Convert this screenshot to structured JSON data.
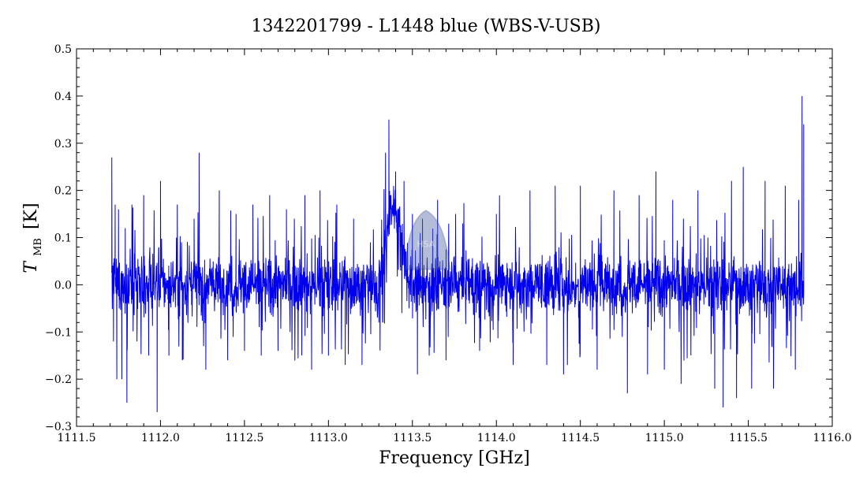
{
  "chart_data": {
    "type": "line",
    "title": "1342201799 - L1448 blue (WBS-V-USB)",
    "xlabel": "Frequency [GHz]",
    "ylabel_main": "T",
    "ylabel_sub": "MB",
    "ylabel_unit": "[K]",
    "xlim": [
      1111.5,
      1116.0
    ],
    "ylim": [
      -0.3,
      0.5
    ],
    "x_ticks": [
      {
        "value": 1111.5,
        "label": "1111.5"
      },
      {
        "value": 1112.0,
        "label": "1112.0"
      },
      {
        "value": 1112.5,
        "label": "1112.5"
      },
      {
        "value": 1113.0,
        "label": "1113.0"
      },
      {
        "value": 1113.5,
        "label": "1113.5"
      },
      {
        "value": 1114.0,
        "label": "1114.0"
      },
      {
        "value": 1114.5,
        "label": "1114.5"
      },
      {
        "value": 1115.0,
        "label": "1115.0"
      },
      {
        "value": 1115.5,
        "label": "1115.5"
      },
      {
        "value": 1116.0,
        "label": "1116.0"
      }
    ],
    "y_ticks": [
      {
        "value": -0.3,
        "label": "−0.3"
      },
      {
        "value": -0.2,
        "label": "−0.2"
      },
      {
        "value": -0.1,
        "label": "−0.1"
      },
      {
        "value": 0.0,
        "label": "0.0"
      },
      {
        "value": 0.1,
        "label": "0.1"
      },
      {
        "value": 0.2,
        "label": "0.2"
      },
      {
        "value": 0.3,
        "label": "0.3"
      },
      {
        "value": 0.4,
        "label": "0.4"
      },
      {
        "value": 0.5,
        "label": "0.5"
      }
    ],
    "grid": false,
    "series": [
      {
        "color": "#0000ee",
        "x_range": [
          1111.71,
          1115.83
        ],
        "points": [
          [
            1111.71,
            0.27
          ],
          [
            1111.72,
            -0.12
          ],
          [
            1111.73,
            0.17
          ],
          [
            1111.74,
            -0.2
          ],
          [
            1111.75,
            0.16
          ],
          [
            1111.77,
            -0.2
          ],
          [
            1111.79,
            0.12
          ],
          [
            1111.8,
            -0.25
          ],
          [
            1111.83,
            0.17
          ],
          [
            1111.86,
            -0.12
          ],
          [
            1111.9,
            0.19
          ],
          [
            1111.93,
            -0.15
          ],
          [
            1111.98,
            -0.27
          ],
          [
            1112.0,
            0.22
          ],
          [
            1112.05,
            -0.15
          ],
          [
            1112.1,
            0.17
          ],
          [
            1112.13,
            -0.16
          ],
          [
            1112.2,
            0.14
          ],
          [
            1112.23,
            0.28
          ],
          [
            1112.27,
            -0.18
          ],
          [
            1112.35,
            0.2
          ],
          [
            1112.4,
            -0.16
          ],
          [
            1112.45,
            0.15
          ],
          [
            1112.5,
            -0.14
          ],
          [
            1112.55,
            0.17
          ],
          [
            1112.6,
            -0.15
          ],
          [
            1112.65,
            0.19
          ],
          [
            1112.7,
            -0.14
          ],
          [
            1112.75,
            0.16
          ],
          [
            1112.8,
            -0.13
          ],
          [
            1112.86,
            0.19
          ],
          [
            1112.9,
            -0.18
          ],
          [
            1112.95,
            0.2
          ],
          [
            1113.0,
            -0.15
          ],
          [
            1113.05,
            0.17
          ],
          [
            1113.1,
            -0.17
          ],
          [
            1113.15,
            0.14
          ],
          [
            1113.2,
            -0.17
          ],
          [
            1113.25,
            0.09
          ],
          [
            1113.3,
            -0.08
          ],
          [
            1113.32,
            0.08
          ],
          [
            1113.34,
            0.28
          ],
          [
            1113.35,
            0.12
          ],
          [
            1113.36,
            0.35
          ],
          [
            1113.38,
            0.15
          ],
          [
            1113.4,
            0.24
          ],
          [
            1113.43,
            0.03
          ],
          [
            1113.45,
            0.22
          ],
          [
            1113.48,
            -0.05
          ],
          [
            1113.5,
            0.15
          ],
          [
            1113.53,
            -0.19
          ],
          [
            1113.56,
            0.14
          ],
          [
            1113.6,
            -0.15
          ],
          [
            1113.65,
            0.18
          ],
          [
            1113.7,
            -0.16
          ],
          [
            1113.8,
            0.13
          ],
          [
            1113.9,
            -0.14
          ],
          [
            1114.0,
            0.15
          ],
          [
            1114.1,
            -0.17
          ],
          [
            1114.2,
            0.2
          ],
          [
            1114.3,
            -0.17
          ],
          [
            1114.35,
            0.21
          ],
          [
            1114.4,
            -0.19
          ],
          [
            1114.5,
            0.21
          ],
          [
            1114.6,
            -0.18
          ],
          [
            1114.7,
            0.2
          ],
          [
            1114.78,
            -0.23
          ],
          [
            1114.85,
            0.19
          ],
          [
            1114.9,
            -0.19
          ],
          [
            1114.95,
            0.24
          ],
          [
            1115.0,
            -0.18
          ],
          [
            1115.05,
            0.18
          ],
          [
            1115.1,
            -0.21
          ],
          [
            1115.2,
            0.2
          ],
          [
            1115.3,
            -0.22
          ],
          [
            1115.35,
            -0.26
          ],
          [
            1115.4,
            0.22
          ],
          [
            1115.43,
            -0.24
          ],
          [
            1115.47,
            0.25
          ],
          [
            1115.52,
            -0.22
          ],
          [
            1115.6,
            0.22
          ],
          [
            1115.65,
            -0.22
          ],
          [
            1115.72,
            0.21
          ],
          [
            1115.78,
            -0.18
          ],
          [
            1115.8,
            0.18
          ],
          [
            1115.82,
            0.4
          ],
          [
            1115.83,
            0.34
          ]
        ]
      }
    ]
  },
  "watermark": {
    "label": "HSA",
    "color": "#5a6fa8"
  }
}
